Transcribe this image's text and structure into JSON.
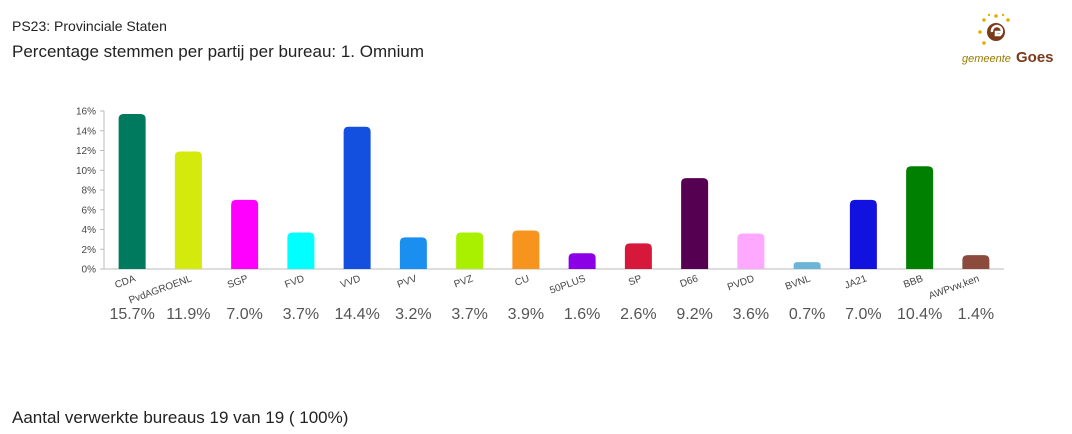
{
  "header": {
    "subtitle": "PS23: Provinciale Staten",
    "title": "Percentage stemmen per partij per bureau: 1. Omnium"
  },
  "logo": {
    "small": "gemeente",
    "big": "Goes"
  },
  "chart_data": {
    "type": "bar",
    "categories": [
      "CDA",
      "PvdAGROENL",
      "SGP",
      "FVD",
      "VVD",
      "PVV",
      "PVZ",
      "CU",
      "50PLUS",
      "SP",
      "D66",
      "PVDD",
      "BVNL",
      "JA21",
      "BBB",
      "AWPvw,ken"
    ],
    "values": [
      15.7,
      11.9,
      7.0,
      3.7,
      14.4,
      3.2,
      3.7,
      3.9,
      1.6,
      2.6,
      9.2,
      3.6,
      0.7,
      7.0,
      10.4,
      1.4
    ],
    "value_labels": [
      "15.7%",
      "11.9%",
      "7.0%",
      "3.7%",
      "14.4%",
      "3.2%",
      "3.7%",
      "3.9%",
      "1.6%",
      "2.6%",
      "9.2%",
      "3.6%",
      "0.7%",
      "7.0%",
      "10.4%",
      "1.4%"
    ],
    "colors": [
      "#007a5e",
      "#d3ea0c",
      "#ff00ff",
      "#00ffff",
      "#1450e0",
      "#1a8ff0",
      "#a8f000",
      "#f7941d",
      "#8c00e8",
      "#d6183a",
      "#550050",
      "#ffa8ff",
      "#6cb4d8",
      "#1212e0",
      "#008000",
      "#8b4a3c"
    ],
    "ylim": [
      0,
      16
    ],
    "yticks": [
      {
        "value": 0,
        "label": "0%"
      },
      {
        "value": 2,
        "label": "2%"
      },
      {
        "value": 4,
        "label": "4%"
      },
      {
        "value": 6,
        "label": "6%"
      },
      {
        "value": 8,
        "label": "8%"
      },
      {
        "value": 10,
        "label": "10%"
      },
      {
        "value": 12,
        "label": "12%"
      },
      {
        "value": 14,
        "label": "14%"
      },
      {
        "value": 16,
        "label": "16%"
      }
    ]
  },
  "footer": "Aantal verwerkte bureaus 19 van 19 ( 100%)"
}
